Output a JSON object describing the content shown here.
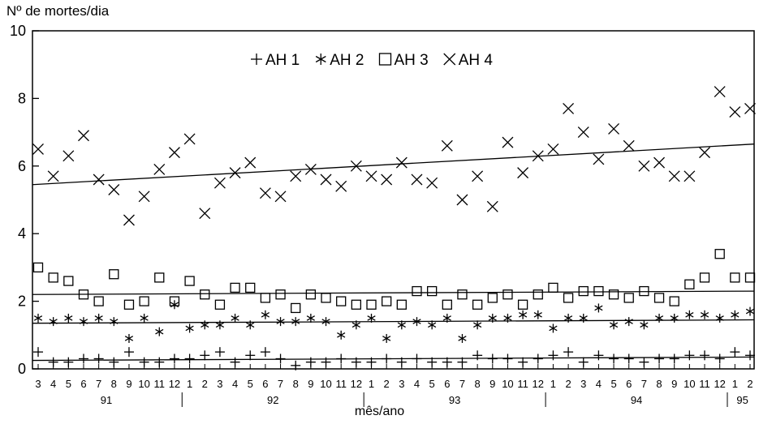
{
  "chart_data": {
    "type": "scatter",
    "ylabel": "Nº de mortes/dia",
    "xlabel": "mês/ano",
    "ylim": [
      0,
      10
    ],
    "yticks": [
      0,
      2,
      4,
      6,
      8,
      10
    ],
    "grid": false,
    "legend_placement": "top-center",
    "x_month_labels": [
      "3",
      "4",
      "5",
      "6",
      "7",
      "8",
      "9",
      "10",
      "11",
      "12",
      "1",
      "2",
      "3",
      "4",
      "5",
      "6",
      "7",
      "8",
      "9",
      "10",
      "11",
      "12",
      "1",
      "2",
      "3",
      "4",
      "5",
      "6",
      "7",
      "8",
      "9",
      "10",
      "11",
      "12",
      "1",
      "2",
      "3",
      "4",
      "5",
      "6",
      "7",
      "8",
      "9",
      "10",
      "11",
      "12",
      "1",
      "2"
    ],
    "year_groups": [
      {
        "label": "91",
        "start": 0,
        "end": 9
      },
      {
        "label": "92",
        "start": 10,
        "end": 21
      },
      {
        "label": "93",
        "start": 22,
        "end": 33
      },
      {
        "label": "94",
        "start": 34,
        "end": 45
      },
      {
        "label": "95",
        "start": 46,
        "end": 47
      }
    ],
    "series": [
      {
        "name": "AH 1",
        "marker": "plus",
        "values": [
          0.5,
          0.2,
          0.2,
          0.3,
          0.3,
          0.2,
          0.5,
          0.2,
          0.2,
          0.3,
          0.3,
          0.4,
          0.5,
          0.2,
          0.4,
          0.5,
          0.3,
          0.1,
          0.2,
          0.2,
          0.3,
          0.2,
          0.2,
          0.3,
          0.2,
          0.3,
          0.2,
          0.2,
          0.2,
          0.4,
          0.3,
          0.3,
          0.2,
          0.3,
          0.4,
          0.5,
          0.2,
          0.4,
          0.3,
          0.3,
          0.2,
          0.3,
          0.3,
          0.4,
          0.4,
          0.3,
          0.5,
          0.4
        ],
        "trend": [
          0.25,
          0.35
        ]
      },
      {
        "name": "AH 2",
        "marker": "star",
        "values": [
          1.5,
          1.4,
          1.5,
          1.4,
          1.5,
          1.4,
          0.9,
          1.5,
          1.1,
          1.9,
          1.2,
          1.3,
          1.3,
          1.5,
          1.3,
          1.6,
          1.4,
          1.4,
          1.5,
          1.4,
          1.0,
          1.3,
          1.5,
          0.9,
          1.3,
          1.4,
          1.3,
          1.5,
          0.9,
          1.3,
          1.5,
          1.5,
          1.6,
          1.6,
          1.2,
          1.5,
          1.5,
          1.8,
          1.3,
          1.4,
          1.3,
          1.5,
          1.5,
          1.6,
          1.6,
          1.5,
          1.6,
          1.7
        ],
        "trend": [
          1.35,
          1.45
        ]
      },
      {
        "name": "AH 3",
        "marker": "square",
        "values": [
          3.0,
          2.7,
          2.6,
          2.2,
          2.0,
          2.8,
          1.9,
          2.0,
          2.7,
          2.0,
          2.6,
          2.2,
          1.9,
          2.4,
          2.4,
          2.1,
          2.2,
          1.8,
          2.2,
          2.1,
          2.0,
          1.9,
          1.9,
          2.0,
          1.9,
          2.3,
          2.3,
          1.9,
          2.2,
          1.9,
          2.1,
          2.2,
          1.9,
          2.2,
          2.4,
          2.1,
          2.3,
          2.3,
          2.2,
          2.1,
          2.3,
          2.1,
          2.0,
          2.5,
          2.7,
          3.4,
          2.7,
          2.7
        ],
        "trend": [
          2.2,
          2.3
        ]
      },
      {
        "name": "AH 4",
        "marker": "x",
        "values": [
          6.5,
          5.7,
          6.3,
          6.9,
          5.6,
          5.3,
          4.4,
          5.1,
          5.9,
          6.4,
          6.8,
          4.6,
          5.5,
          5.8,
          6.1,
          5.2,
          5.1,
          5.7,
          5.9,
          5.6,
          5.4,
          6.0,
          5.7,
          5.6,
          6.1,
          5.6,
          5.5,
          6.6,
          5.0,
          5.7,
          4.8,
          6.7,
          5.8,
          6.3,
          6.5,
          7.7,
          7.0,
          6.2,
          7.1,
          6.6,
          6.0,
          6.1,
          5.7,
          5.7,
          6.4,
          8.2,
          7.6,
          7.7
        ],
        "trend": [
          5.45,
          6.65
        ]
      }
    ]
  }
}
